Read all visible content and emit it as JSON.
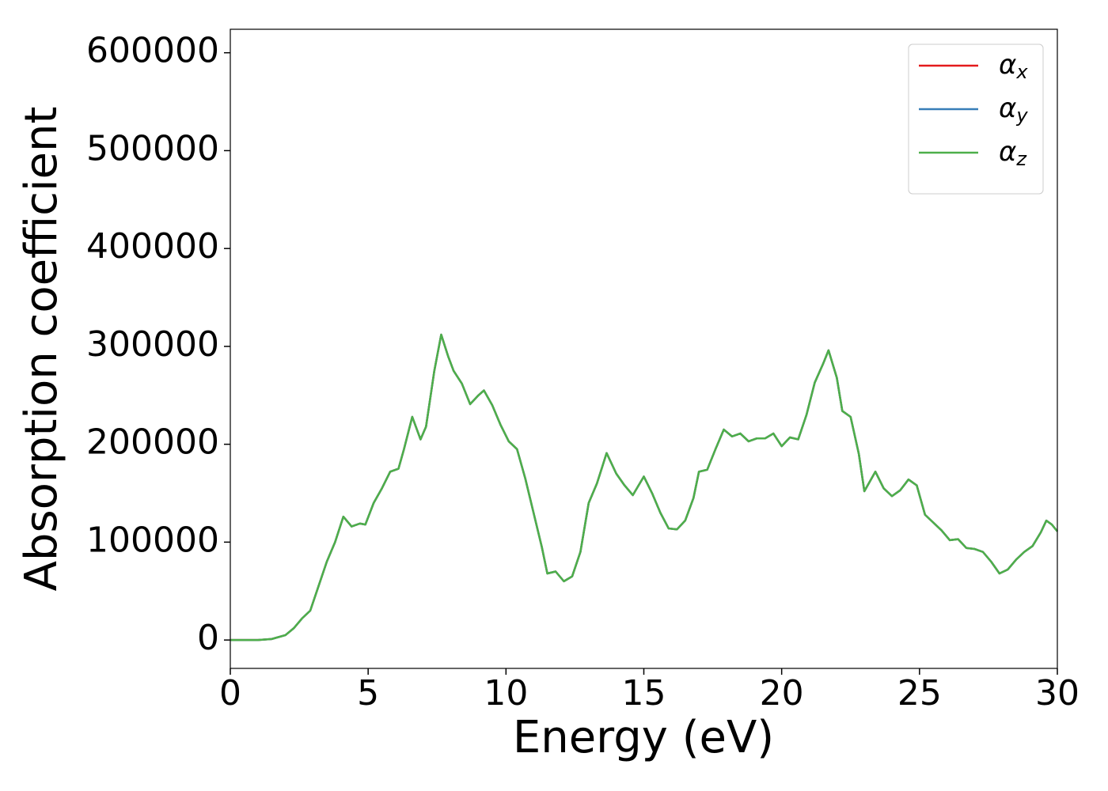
{
  "chart_data": {
    "type": "line",
    "xlabel": "Energy (eV)",
    "ylabel": "Absorption coefficient",
    "x": [
      0,
      1,
      1.5,
      2,
      2.3,
      2.6,
      2.9,
      3.2,
      3.5,
      3.8,
      4.1,
      4.4,
      4.7,
      4.9,
      5.2,
      5.5,
      5.8,
      6.1,
      6.3,
      6.6,
      6.9,
      7.1,
      7.4,
      7.65,
      7.9,
      8.1,
      8.4,
      8.7,
      9.0,
      9.2,
      9.5,
      9.8,
      10.1,
      10.4,
      10.7,
      11.0,
      11.3,
      11.5,
      11.8,
      12.1,
      12.4,
      12.7,
      13.0,
      13.3,
      13.65,
      14.0,
      14.3,
      14.6,
      15.0,
      15.3,
      15.6,
      15.9,
      16.2,
      16.5,
      16.8,
      17.0,
      17.3,
      17.6,
      17.9,
      18.2,
      18.5,
      18.8,
      19.1,
      19.4,
      19.7,
      20.0,
      20.3,
      20.6,
      20.9,
      21.2,
      21.5,
      21.7,
      22.0,
      22.2,
      22.5,
      22.8,
      23.0,
      23.4,
      23.7,
      24.0,
      24.3,
      24.6,
      24.9,
      25.2,
      25.5,
      25.8,
      26.1,
      26.4,
      26.7,
      27.0,
      27.3,
      27.6,
      27.9,
      28.2,
      28.5,
      28.8,
      29.1,
      29.4,
      29.6,
      29.8,
      30
    ],
    "series": [
      {
        "name": "αx",
        "color": "#e41a1c",
        "values": [
          0,
          0,
          1000,
          5000,
          12000,
          22000,
          30000,
          55000,
          80000,
          100000,
          126000,
          116000,
          119000,
          118000,
          140000,
          155000,
          172000,
          175000,
          195000,
          228000,
          205000,
          218000,
          275000,
          312000,
          290000,
          275000,
          262000,
          241000,
          250000,
          255000,
          240000,
          220000,
          203000,
          195000,
          165000,
          130000,
          95000,
          68000,
          70000,
          60000,
          65000,
          90000,
          140000,
          160000,
          191000,
          170000,
          158000,
          148000,
          167000,
          150000,
          130000,
          114000,
          113000,
          122000,
          145000,
          172000,
          174000,
          195000,
          215000,
          208000,
          211000,
          203000,
          206000,
          206000,
          211000,
          198000,
          207000,
          205000,
          230000,
          263000,
          282000,
          296000,
          268000,
          234000,
          228000,
          190000,
          152000,
          172000,
          155000,
          147000,
          153000,
          164000,
          158000,
          128000,
          120000,
          112000,
          102000,
          103000,
          94000,
          93000,
          90000,
          80000,
          68000,
          72000,
          82000,
          90000,
          96000,
          110000,
          122000,
          118000,
          111000
        ]
      },
      {
        "name": "αy",
        "color": "#377eb8",
        "values": [
          0,
          0,
          1000,
          5000,
          12000,
          22000,
          30000,
          55000,
          80000,
          100000,
          126000,
          116000,
          119000,
          118000,
          140000,
          155000,
          172000,
          175000,
          195000,
          228000,
          205000,
          218000,
          275000,
          312000,
          290000,
          275000,
          262000,
          241000,
          250000,
          255000,
          240000,
          220000,
          203000,
          195000,
          165000,
          130000,
          95000,
          68000,
          70000,
          60000,
          65000,
          90000,
          140000,
          160000,
          191000,
          170000,
          158000,
          148000,
          167000,
          150000,
          130000,
          114000,
          113000,
          122000,
          145000,
          172000,
          174000,
          195000,
          215000,
          208000,
          211000,
          203000,
          206000,
          206000,
          211000,
          198000,
          207000,
          205000,
          230000,
          263000,
          282000,
          296000,
          268000,
          234000,
          228000,
          190000,
          152000,
          172000,
          155000,
          147000,
          153000,
          164000,
          158000,
          128000,
          120000,
          112000,
          102000,
          103000,
          94000,
          93000,
          90000,
          80000,
          68000,
          72000,
          82000,
          90000,
          96000,
          110000,
          122000,
          118000,
          111000
        ]
      },
      {
        "name": "αz",
        "color": "#4daf4a",
        "values": [
          0,
          0,
          1000,
          5000,
          12000,
          22000,
          30000,
          55000,
          80000,
          100000,
          126000,
          116000,
          119000,
          118000,
          140000,
          155000,
          172000,
          175000,
          195000,
          228000,
          205000,
          218000,
          275000,
          312000,
          290000,
          275000,
          262000,
          241000,
          250000,
          255000,
          240000,
          220000,
          203000,
          195000,
          165000,
          130000,
          95000,
          68000,
          70000,
          60000,
          65000,
          90000,
          140000,
          160000,
          191000,
          170000,
          158000,
          148000,
          167000,
          150000,
          130000,
          114000,
          113000,
          122000,
          145000,
          172000,
          174000,
          195000,
          215000,
          208000,
          211000,
          203000,
          206000,
          206000,
          211000,
          198000,
          207000,
          205000,
          230000,
          263000,
          282000,
          296000,
          268000,
          234000,
          228000,
          190000,
          152000,
          172000,
          155000,
          147000,
          153000,
          164000,
          158000,
          128000,
          120000,
          112000,
          102000,
          103000,
          94000,
          93000,
          90000,
          80000,
          68000,
          72000,
          82000,
          90000,
          96000,
          110000,
          122000,
          118000,
          111000
        ]
      }
    ],
    "xlim": [
      0,
      30
    ],
    "xticks": [
      0,
      5,
      10,
      15,
      20,
      25,
      30
    ],
    "ylim": [
      -29000,
      624000
    ],
    "yticks": [
      0,
      100000,
      200000,
      300000,
      400000,
      500000,
      600000
    ],
    "grid": false,
    "legend": "upper right"
  }
}
